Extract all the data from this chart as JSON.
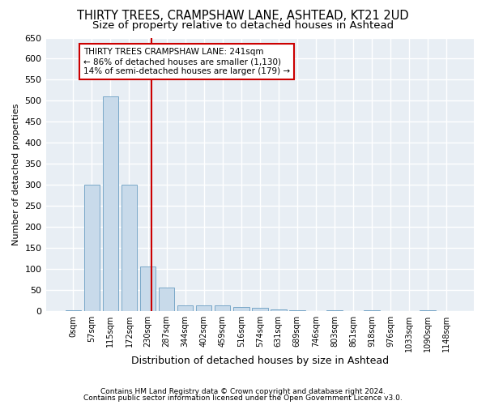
{
  "title": "THIRTY TREES, CRAMPSHAW LANE, ASHTEAD, KT21 2UD",
  "subtitle": "Size of property relative to detached houses in Ashtead",
  "xlabel": "Distribution of detached houses by size in Ashtead",
  "ylabel": "Number of detached properties",
  "bar_color": "#c8daea",
  "bar_edge_color": "#7aa8c8",
  "bin_labels": [
    "0sqm",
    "57sqm",
    "115sqm",
    "172sqm",
    "230sqm",
    "287sqm",
    "344sqm",
    "402sqm",
    "459sqm",
    "516sqm",
    "574sqm",
    "631sqm",
    "689sqm",
    "746sqm",
    "803sqm",
    "861sqm",
    "918sqm",
    "976sqm",
    "1033sqm",
    "1090sqm",
    "1148sqm"
  ],
  "bar_heights": [
    2,
    300,
    510,
    300,
    105,
    55,
    13,
    13,
    13,
    9,
    7,
    4,
    2,
    0,
    2,
    0,
    2,
    0,
    0,
    2,
    0
  ],
  "vline_x_index": 4.19,
  "vline_color": "#cc0000",
  "annotation_text": "THIRTY TREES CRAMPSHAW LANE: 241sqm\n← 86% of detached houses are smaller (1,130)\n14% of semi-detached houses are larger (179) →",
  "annotation_box_color": "#ffffff",
  "annotation_box_edge": "#cc0000",
  "ylim": [
    0,
    650
  ],
  "yticks": [
    0,
    50,
    100,
    150,
    200,
    250,
    300,
    350,
    400,
    450,
    500,
    550,
    600,
    650
  ],
  "footer1": "Contains HM Land Registry data © Crown copyright and database right 2024.",
  "footer2": "Contains public sector information licensed under the Open Government Licence v3.0.",
  "background_color": "#ffffff",
  "plot_background": "#e8eef4",
  "grid_color": "#ffffff",
  "title_fontsize": 10.5,
  "subtitle_fontsize": 9.5,
  "title_fontweight": "normal"
}
